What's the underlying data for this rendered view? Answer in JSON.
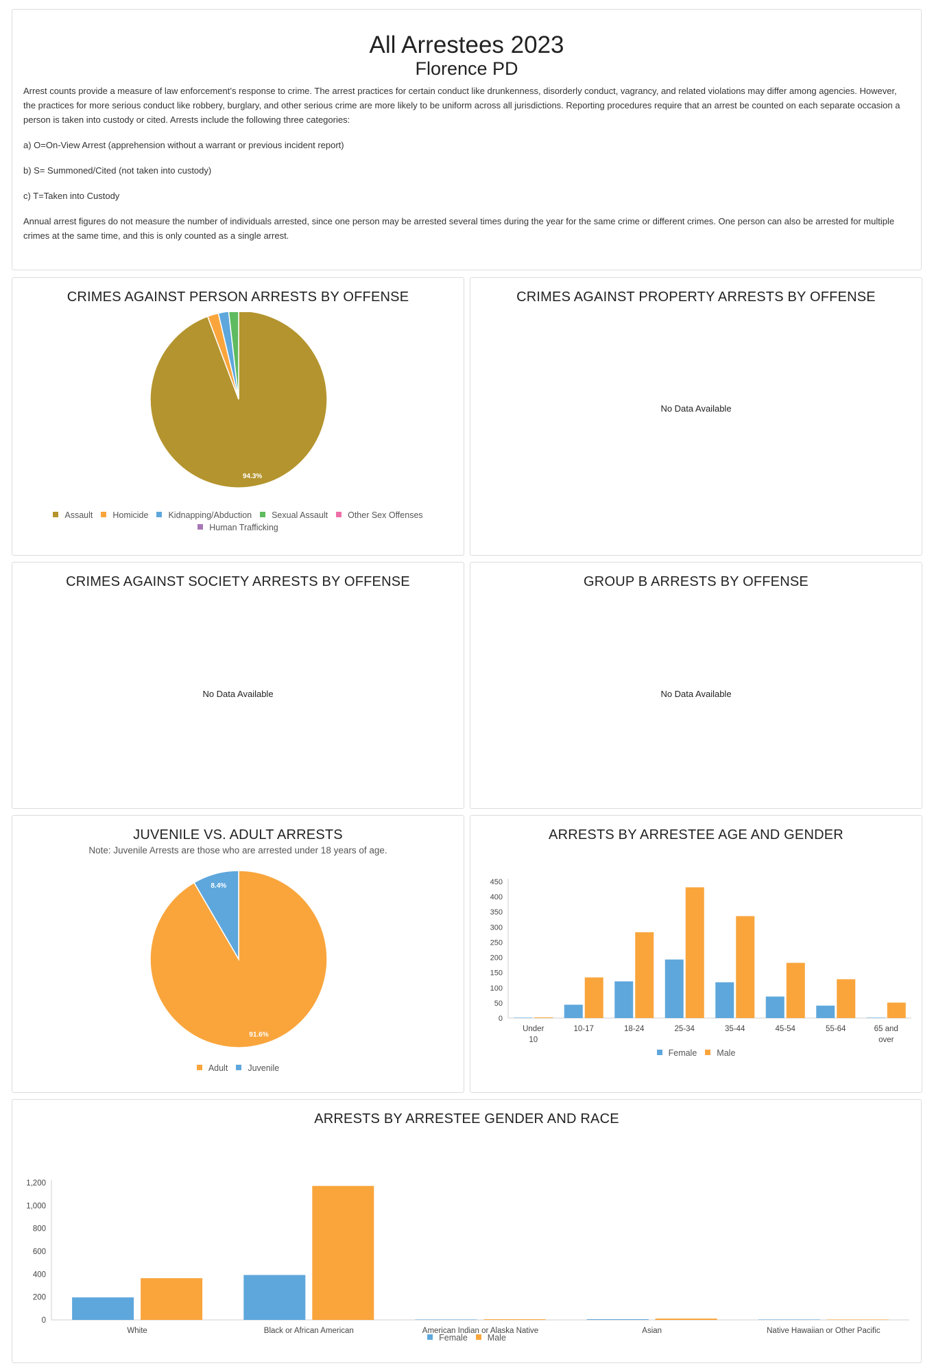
{
  "intro": {
    "title": "All Arrestees 2023",
    "subtitle": "Florence PD",
    "para1": "Arrest counts provide a measure of law enforcement’s response to crime. The arrest practices for certain conduct like drunkenness, disorderly conduct, vagrancy, and related violations may differ among agencies. However, the practices for more serious conduct like robbery, burglary, and other serious crime are more likely to be uniform across all jurisdictions. Reporting procedures require that an arrest be counted on each separate occasion a person is taken into custody or cited. Arrests include the following three categories:",
    "item_a": "a) O=On-View Arrest (apprehension without a warrant or previous incident report)",
    "item_b": "b) S= Summoned/Cited (not taken into custody)",
    "item_c": "c) T=Taken into Custody",
    "para2": "Annual arrest figures do not measure the number of individuals arrested, since one person may be arrested several times during the year for the same crime or different crimes. One person can also be arrested for multiple crimes at the same time, and this is only counted as a single arrest."
  },
  "no_data_text": "No Data Available",
  "colors": {
    "assault": "#b4942e",
    "orange": "#f9a53c",
    "blue": "#5ea7dc",
    "green": "#5fbb5f",
    "pink": "#ee6fa8",
    "purple": "#a877b5"
  },
  "chart_data": [
    {
      "id": "person",
      "type": "pie",
      "title": "CRIMES AGAINST PERSON ARRESTS BY OFFENSE",
      "slices": [
        {
          "name": "Assault",
          "value": 94.3,
          "color": "#b4942e",
          "label": "94.3%"
        },
        {
          "name": "Homicide",
          "value": 2.0,
          "color": "#f9a53c"
        },
        {
          "name": "Kidnapping/Abduction",
          "value": 1.9,
          "color": "#5ea7dc"
        },
        {
          "name": "Sexual Assault",
          "value": 1.8,
          "color": "#5fbb5f"
        },
        {
          "name": "Other Sex Offenses",
          "value": 0,
          "color": "#ee6fa8"
        },
        {
          "name": "Human Trafficking",
          "value": 0,
          "color": "#a877b5"
        }
      ]
    },
    {
      "id": "property",
      "type": "pie",
      "title": "CRIMES AGAINST PROPERTY ARRESTS BY OFFENSE",
      "slices": []
    },
    {
      "id": "society",
      "type": "pie",
      "title": "CRIMES AGAINST SOCIETY ARRESTS BY OFFENSE",
      "slices": []
    },
    {
      "id": "groupb",
      "type": "pie",
      "title": "GROUP B ARRESTS BY OFFENSE",
      "slices": []
    },
    {
      "id": "juvenile",
      "type": "pie",
      "title": "JUVENILE VS. ADULT ARRESTS",
      "note": "Note: Juvenile Arrests are those who are arrested under 18 years of age.",
      "slices": [
        {
          "name": "Adult",
          "value": 91.6,
          "color": "#f9a53c",
          "label": "91.6%"
        },
        {
          "name": "Juvenile",
          "value": 8.4,
          "color": "#5ea7dc",
          "label": "8.4%"
        }
      ]
    },
    {
      "id": "agegender",
      "type": "bar",
      "title": "ARRESTS BY ARRESTEE AGE AND GENDER",
      "categories": [
        "Under 10",
        "10-17",
        "18-24",
        "25-34",
        "35-44",
        "45-54",
        "55-64",
        "65 and over"
      ],
      "series": [
        {
          "name": "Female",
          "color": "#5ea7dc",
          "values": [
            0,
            44,
            121,
            193,
            118,
            71,
            41,
            0
          ]
        },
        {
          "name": "Male",
          "color": "#f9a53c",
          "values": [
            2,
            134,
            283,
            431,
            336,
            182,
            128,
            51
          ]
        }
      ],
      "ylim": [
        0,
        450
      ],
      "yticks": [
        0,
        50,
        100,
        150,
        200,
        250,
        300,
        350,
        400,
        450
      ]
    },
    {
      "id": "genderrace",
      "type": "bar",
      "title": "ARRESTS BY ARRESTEE GENDER AND RACE",
      "categories": [
        "White",
        "Black or African American",
        "American Indian or Alaska Native",
        "Asian",
        "Native Hawaiian or Other Pacific Islander"
      ],
      "series": [
        {
          "name": "Female",
          "color": "#5ea7dc",
          "values": [
            197,
            393,
            0,
            3,
            0
          ]
        },
        {
          "name": "Male",
          "color": "#f9a53c",
          "values": [
            365,
            1172,
            2,
            12,
            0
          ]
        }
      ],
      "ylim": [
        0,
        1200
      ],
      "yticks": [
        "0",
        "200",
        "400",
        "600",
        "800",
        "1,000",
        "1,200"
      ]
    }
  ]
}
